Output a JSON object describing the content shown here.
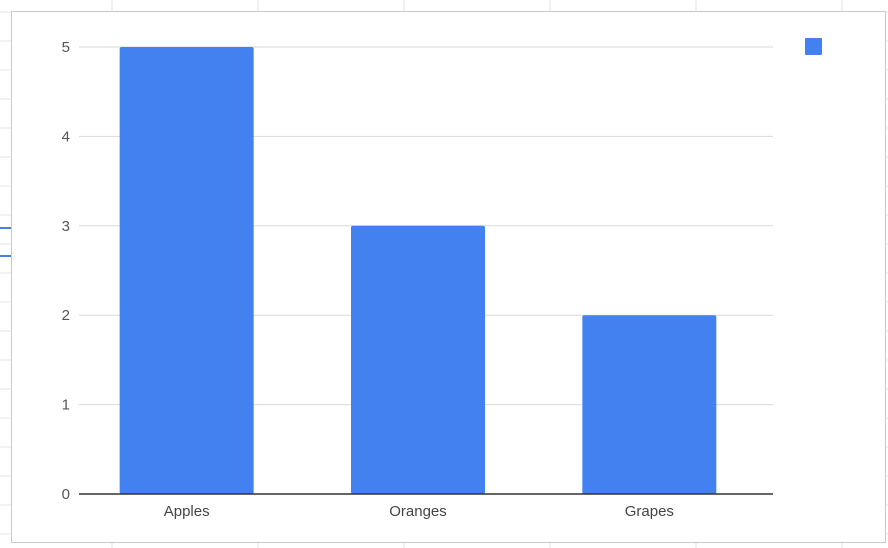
{
  "chart_data": {
    "type": "bar",
    "title": "",
    "xlabel": "",
    "ylabel": "",
    "categories": [
      "Apples",
      "Oranges",
      "Grapes"
    ],
    "values": [
      5,
      3,
      2
    ],
    "ylim": [
      0,
      5
    ],
    "yticks": [
      "0",
      "1",
      "2",
      "3",
      "4",
      "5"
    ],
    "grid": true,
    "legend": {
      "placement": "top-right",
      "entries": [
        ""
      ]
    },
    "colors": {
      "bar": "#4380f0",
      "grid": "#d9d9d9",
      "axis": "#333333"
    }
  }
}
